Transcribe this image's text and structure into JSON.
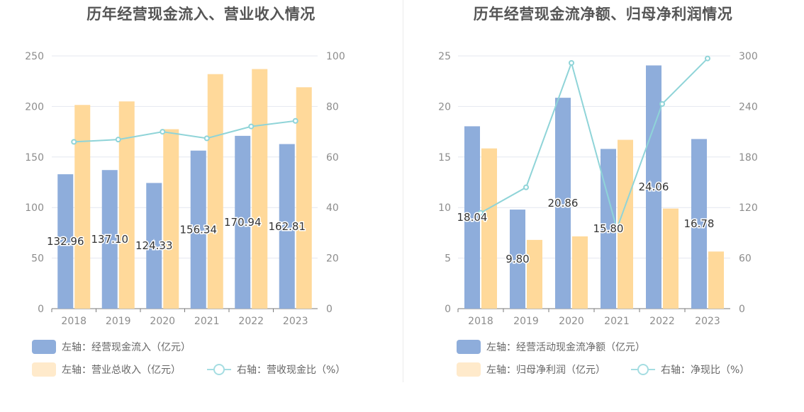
{
  "colors": {
    "bar_left": "#8eaddb",
    "bar_right": "#ffd99a",
    "line": "#8fd4d8",
    "legend_bar_left": "#8eaddb",
    "legend_bar_right": "#ffeacb",
    "axis_text": "#8c8c8c",
    "grid": "#e4e7ef"
  },
  "chart_data": [
    {
      "type": "bar",
      "title": "历年经营现金流入、营业收入情况",
      "categories": [
        "2018",
        "2019",
        "2020",
        "2021",
        "2022",
        "2023"
      ],
      "series": [
        {
          "name": "左轴：经营现金流入（亿元）",
          "axis": "left",
          "type": "bar",
          "values": [
            132.96,
            137.1,
            124.33,
            156.34,
            170.94,
            162.81
          ],
          "labels": [
            "132.96",
            "137.10",
            "124.33",
            "156.34",
            "170.94",
            "162.81"
          ]
        },
        {
          "name": "左轴：营业总收入（亿元）",
          "axis": "left",
          "type": "bar",
          "values": [
            201.5,
            205.0,
            177.5,
            232.0,
            237.0,
            219.0
          ]
        },
        {
          "name": "右轴：营收现金比（%）",
          "axis": "right",
          "type": "line",
          "values": [
            66.0,
            66.9,
            70.0,
            67.4,
            72.1,
            74.3
          ]
        }
      ],
      "y_left": {
        "min": 0,
        "max": 250,
        "ticks": [
          "0",
          "50",
          "100",
          "150",
          "200",
          "250"
        ]
      },
      "y_right": {
        "min": 0,
        "max": 100,
        "ticks": [
          "0",
          "20",
          "40",
          "60",
          "80",
          "100"
        ]
      },
      "grid": true,
      "legend_position": "bottom-left"
    },
    {
      "type": "bar",
      "title": "历年经营现金流净额、归母净利润情况",
      "categories": [
        "2018",
        "2019",
        "2020",
        "2021",
        "2022",
        "2023"
      ],
      "series": [
        {
          "name": "左轴：经营活动现金流净额（亿元）",
          "axis": "left",
          "type": "bar",
          "values": [
            18.04,
            9.8,
            20.86,
            15.8,
            24.06,
            16.78
          ],
          "labels": [
            "18.04",
            "9.80",
            "20.86",
            "15.80",
            "24.06",
            "16.78"
          ]
        },
        {
          "name": "左轴：归母净利润（亿元）",
          "axis": "left",
          "type": "bar",
          "values": [
            15.85,
            6.8,
            7.15,
            16.7,
            9.9,
            5.65
          ]
        },
        {
          "name": "右轴：净现比（%）",
          "axis": "right",
          "type": "line",
          "values": [
            113.8,
            144.0,
            291.7,
            94.6,
            243.0,
            297.0
          ]
        }
      ],
      "y_left": {
        "min": 0,
        "max": 25,
        "ticks": [
          "0",
          "5",
          "10",
          "15",
          "20",
          "25"
        ]
      },
      "y_right": {
        "min": 0,
        "max": 300,
        "ticks": [
          "0",
          "60",
          "120",
          "180",
          "240",
          "300"
        ]
      },
      "grid": true,
      "legend_position": "bottom-left"
    }
  ]
}
